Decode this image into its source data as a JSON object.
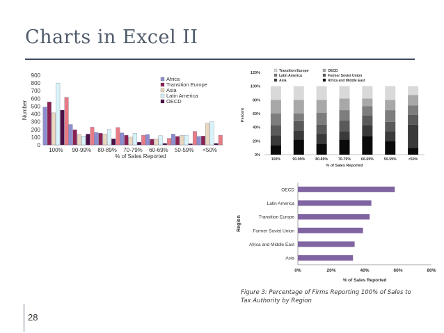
{
  "slide": {
    "title": "Charts in Excel II",
    "page_number": "28",
    "caption": "Figure 3: Percentage of Firms Reporting 100% of Sales to Tax Authority by Region"
  },
  "chart_data": [
    {
      "type": "bar",
      "categories": [
        "100%",
        "90-99%",
        "80-89%",
        "70-79%",
        "60-69%",
        "50-59%",
        "<50%"
      ],
      "series": [
        {
          "name": "Africa",
          "color": "#8e8ecf",
          "values": [
            490,
            265,
            160,
            155,
            135,
            140,
            110
          ]
        },
        {
          "name": "Transition Europe",
          "color": "#8b2252",
          "values": [
            555,
            195,
            150,
            125,
            75,
            110,
            115
          ]
        },
        {
          "name": "Asia",
          "color": "#e9d8bf",
          "values": [
            415,
            135,
            140,
            100,
            80,
            125,
            280
          ]
        },
        {
          "name": "Latin America",
          "color": "#d8f4f8",
          "values": [
            800,
            115,
            200,
            150,
            120,
            125,
            300
          ]
        },
        {
          "name": "OECD",
          "color": "#4a0f45",
          "values": [
            450,
            140,
            80,
            35,
            20,
            15,
            20
          ]
        },
        {
          "name": "",
          "color": "#e97b85",
          "values": [
            615,
            230,
            225,
            125,
            85,
            175,
            125
          ]
        }
      ],
      "xlabel": "% of Sales Reported",
      "ylabel": "Number",
      "ylim": [
        0,
        900
      ],
      "yticks": [
        0,
        100,
        200,
        300,
        400,
        500,
        600,
        700,
        800,
        900
      ],
      "legend": "right"
    },
    {
      "type": "bar",
      "stacked": true,
      "categories": [
        "100%",
        "90-99%",
        "80-89%",
        "70-79%",
        "60-69%",
        "50-59%",
        "<50%"
      ],
      "series": [
        {
          "name": "Africa and Middle East",
          "color": "#0a0a0a",
          "values": [
            14,
            22,
            16,
            22,
            27,
            20,
            10
          ]
        },
        {
          "name": "Asia",
          "color": "#3a3a3a",
          "values": [
            14,
            13,
            14,
            12,
            16,
            14,
            34
          ]
        },
        {
          "name": "Former Soviet Union",
          "color": "#5a5a5a",
          "values": [
            15,
            14,
            14,
            16,
            14,
            14,
            14
          ]
        },
        {
          "name": "Latin America",
          "color": "#7d7d7d",
          "values": [
            17,
            11,
            17,
            15,
            14,
            17,
            14
          ]
        },
        {
          "name": "OECD",
          "color": "#a8a8a8",
          "values": [
            20,
            20,
            19,
            17,
            11,
            15,
            15
          ]
        },
        {
          "name": "Transition Europe",
          "color": "#d9d9d9",
          "values": [
            20,
            20,
            20,
            18,
            18,
            20,
            13
          ]
        }
      ],
      "xlabel": "% of Sales Reported",
      "ylabel": "Percent",
      "ylim": [
        0,
        120
      ],
      "yticks": [
        "0%",
        "20%",
        "40%",
        "60%",
        "80%",
        "100%",
        "120%"
      ],
      "legend": "top"
    },
    {
      "type": "bar",
      "orientation": "horizontal",
      "categories": [
        "OECD",
        "Latin America",
        "Transition Europe",
        "Former Soviet Union",
        "Africa and Middle East",
        "Asia"
      ],
      "values": [
        58,
        44,
        43,
        39,
        34,
        33
      ],
      "color": "#8064a2",
      "xlabel": "% of Sales Reported",
      "ylabel": "Region",
      "xlim": [
        0,
        80
      ],
      "xticks": [
        "0%",
        "20%",
        "40%",
        "60%",
        "80%"
      ]
    }
  ]
}
